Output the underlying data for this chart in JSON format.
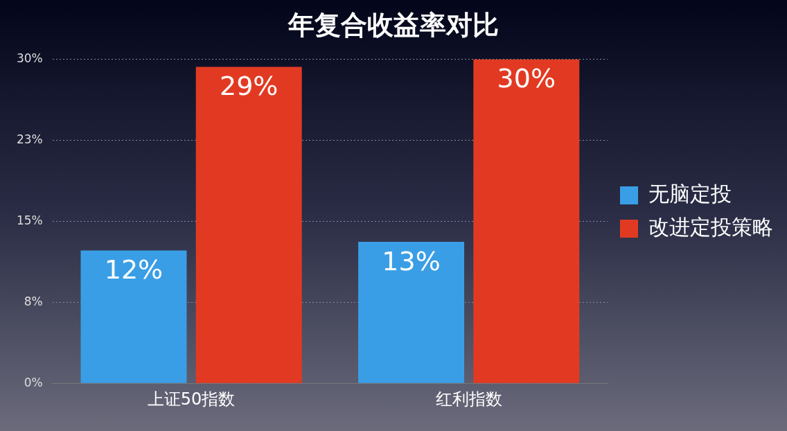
{
  "chart_data": {
    "type": "bar",
    "title": "年复合收益率对比",
    "categories": [
      "上证50指数",
      "红利指数"
    ],
    "series": [
      {
        "name": "无脑定投",
        "color": "#3a9ee6",
        "values": [
          12.3,
          13.1
        ],
        "value_labels": [
          "12%",
          "13%"
        ]
      },
      {
        "name": "改进定投策略",
        "color": "#e23a22",
        "values": [
          29.3,
          30
        ],
        "value_labels": [
          "29%",
          "30%"
        ]
      }
    ],
    "ylim": [
      0,
      30
    ],
    "yticks": [
      {
        "value": 0,
        "label": "0%"
      },
      {
        "value": 7.5,
        "label": "8%"
      },
      {
        "value": 15,
        "label": "15%"
      },
      {
        "value": 22.5,
        "label": "23%"
      },
      {
        "value": 30,
        "label": "30%"
      }
    ],
    "grid": "y",
    "legend": "right"
  }
}
